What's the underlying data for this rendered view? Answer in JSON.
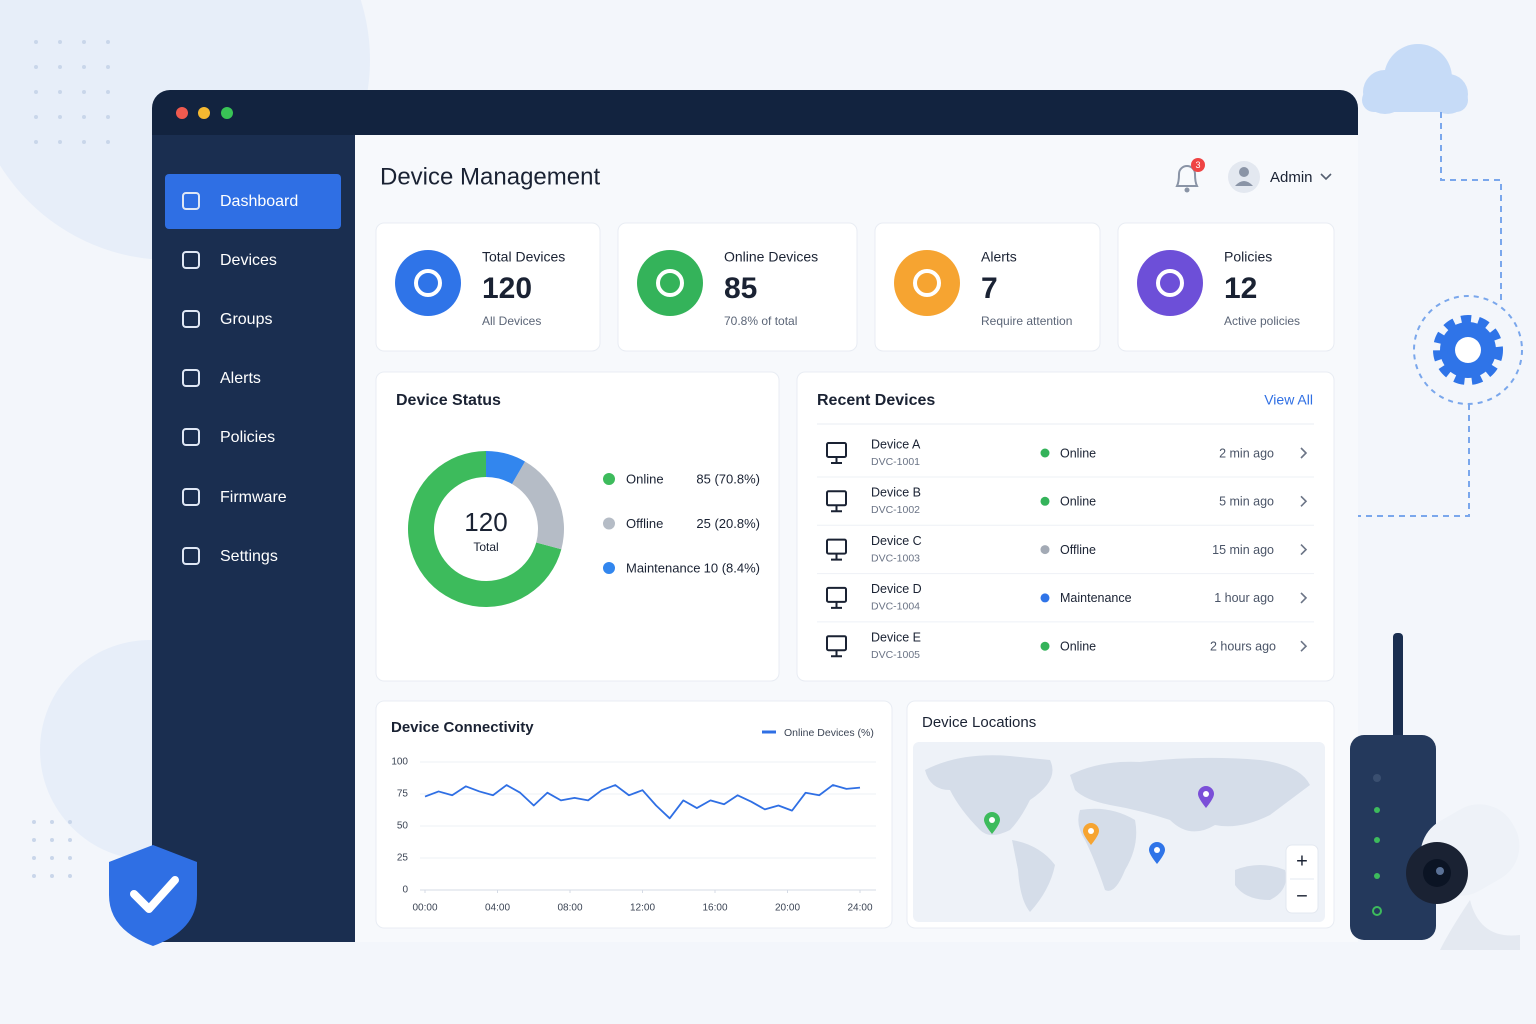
{
  "header": {
    "title": "Device Management",
    "notification_count": 3,
    "user": "Admin"
  },
  "sidebar": {
    "items": [
      "Dashboard",
      "Devices",
      "Groups",
      "Alerts",
      "Policies",
      "Firmware",
      "Settings"
    ]
  },
  "stats": [
    {
      "label": "Total Devices",
      "value": 120,
      "note": "All Devices",
      "color": "#2f74e8"
    },
    {
      "label": "Online Devices",
      "value": 85,
      "note": "70.8% of total",
      "color": "#34b35a"
    },
    {
      "label": "Alerts",
      "value": 7,
      "note": "Require attention",
      "color": "#f6a431"
    },
    {
      "label": "Policies",
      "value": 12,
      "note": "Active policies",
      "color": "#6d4fd8"
    }
  ],
  "recent_devices": {
    "title": "Recent Devices",
    "view_all": "View All",
    "status_colors": {
      "Online": "#34b35a",
      "Offline": "#a3aab5",
      "Maintenance": "#2f74e8"
    },
    "rows": [
      {
        "name": "Device A",
        "id": "DVC-1001",
        "status": "Online",
        "time": "2 min ago"
      },
      {
        "name": "Device B",
        "id": "DVC-1002",
        "status": "Online",
        "time": "5 min ago"
      },
      {
        "name": "Device C",
        "id": "DVC-1003",
        "status": "Offline",
        "time": "15 min ago"
      },
      {
        "name": "Device D",
        "id": "DVC-1004",
        "status": "Maintenance",
        "time": "1 hour ago"
      },
      {
        "name": "Device E",
        "id": "DVC-1005",
        "status": "Online",
        "time": "2 hours ago"
      }
    ]
  },
  "locations": {
    "title": "Device Locations",
    "zoom_in": "+",
    "zoom_out": "−"
  },
  "chart_data": [
    {
      "type": "pie",
      "donut": true,
      "title": "Device Status",
      "center_value": 120,
      "center_label": "Total",
      "categories": [
        "Online",
        "Offline",
        "Maintenance"
      ],
      "values": [
        85,
        25,
        10
      ],
      "value_labels": [
        "85 (70.8%)",
        "25 (20.8%)",
        "10 (8.4%)"
      ],
      "colors": [
        "#3dbb5c",
        "#b5bcc6",
        "#3286ee"
      ]
    },
    {
      "type": "line",
      "title": "Device Connectivity",
      "x": [
        0,
        0.75,
        1.5,
        2.25,
        3,
        3.75,
        4.5,
        5.25,
        6,
        6.75,
        7.5,
        8.25,
        9,
        9.75,
        10.5,
        11.25,
        12,
        12.75,
        13.5,
        14.25,
        15,
        15.75,
        16.5,
        17.25,
        18,
        18.75,
        19.5,
        20.25,
        21,
        21.75,
        22.5,
        23.25,
        24
      ],
      "series": [
        {
          "name": "Online Devices (%)",
          "color": "#2f6fe4",
          "values": [
            73,
            77,
            74,
            81,
            77,
            74,
            82,
            76,
            66,
            76,
            70,
            72,
            70,
            78,
            82,
            74,
            78,
            66,
            56,
            70,
            64,
            70,
            67,
            74,
            69,
            63,
            66,
            62,
            76,
            74,
            82,
            79,
            80
          ]
        }
      ],
      "xlim": [
        0,
        24
      ],
      "xticks": [
        {
          "value": 0,
          "label": "00:00"
        },
        {
          "value": 4,
          "label": "04:00"
        },
        {
          "value": 8,
          "label": "08:00"
        },
        {
          "value": 12,
          "label": "12:00"
        },
        {
          "value": 16,
          "label": "16:00"
        },
        {
          "value": 20,
          "label": "20:00"
        },
        {
          "value": 24,
          "label": "24:00"
        }
      ],
      "ylim": [
        0,
        100
      ],
      "yticks": [
        0,
        25,
        50,
        75,
        100
      ],
      "grid": true
    }
  ]
}
